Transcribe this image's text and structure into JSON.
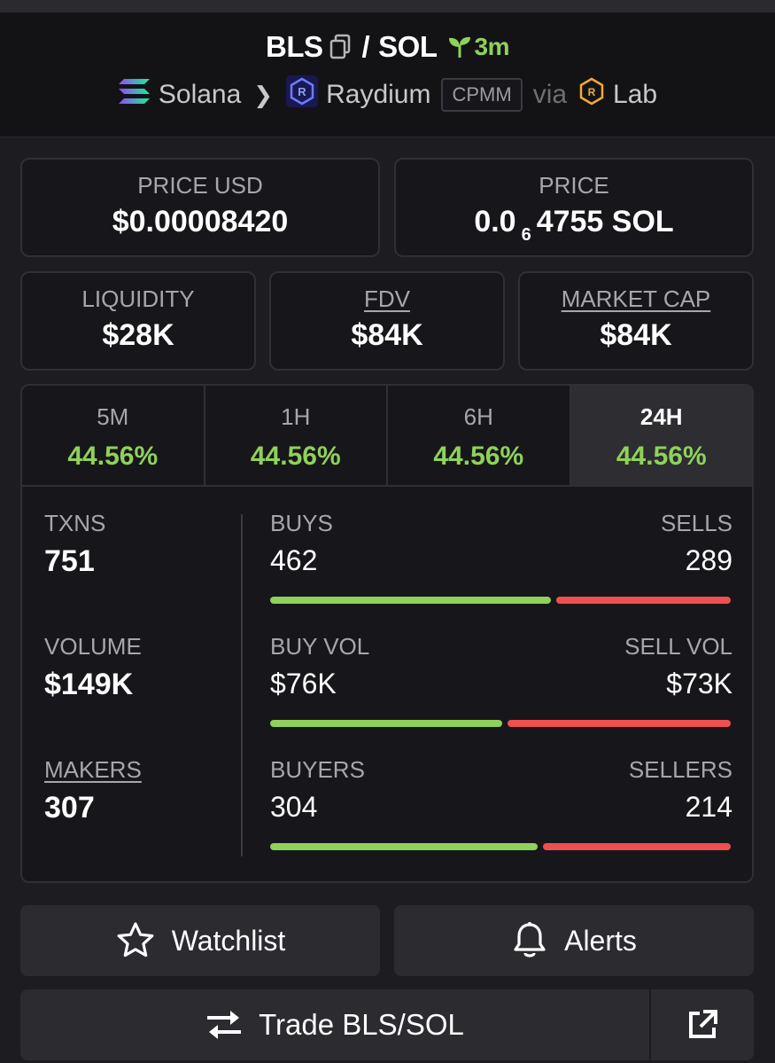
{
  "header": {
    "base_token": "BLS",
    "separator": "/",
    "quote_token": "SOL",
    "age": "3m",
    "chain": "Solana",
    "dex": "Raydium",
    "pool_type": "CPMM",
    "via": "via",
    "launchpad": "Lab"
  },
  "price_cards": {
    "price_usd_label": "PRICE USD",
    "price_usd_value": "$0.00008420",
    "price_label": "PRICE",
    "price_prefix": "0.0",
    "price_zero_count": "6",
    "price_suffix": "4755 SOL"
  },
  "metrics": {
    "liquidity_label": "LIQUIDITY",
    "liquidity_value": "$28K",
    "fdv_label": "FDV",
    "fdv_value": "$84K",
    "mcap_label": "MARKET CAP",
    "mcap_value": "$84K"
  },
  "timeframes": [
    {
      "label": "5M",
      "change": "44.56%",
      "active": false
    },
    {
      "label": "1H",
      "change": "44.56%",
      "active": false
    },
    {
      "label": "6H",
      "change": "44.56%",
      "active": false
    },
    {
      "label": "24H",
      "change": "44.56%",
      "active": true
    }
  ],
  "stats": {
    "txns_label": "TXNS",
    "txns_value": "751",
    "volume_label": "VOLUME",
    "volume_value": "$149K",
    "makers_label": "MAKERS",
    "makers_value": "307",
    "buys_label": "BUYS",
    "buys_value": "462",
    "sells_label": "SELLS",
    "sells_value": "289",
    "buys_ratio": 0.615,
    "buy_vol_label": "BUY VOL",
    "buy_vol_value": "$76K",
    "sell_vol_label": "SELL VOL",
    "sell_vol_value": "$73K",
    "buy_vol_ratio": 0.51,
    "buyers_label": "BUYERS",
    "buyers_value": "304",
    "sellers_label": "SELLERS",
    "sellers_value": "214",
    "buyers_ratio": 0.587
  },
  "actions": {
    "watchlist_label": "Watchlist",
    "alerts_label": "Alerts",
    "trade_label": "Trade BLS/SOL"
  },
  "colors": {
    "green": "#8fd15a",
    "red": "#ef4f4f",
    "background": "#1c1c21"
  }
}
